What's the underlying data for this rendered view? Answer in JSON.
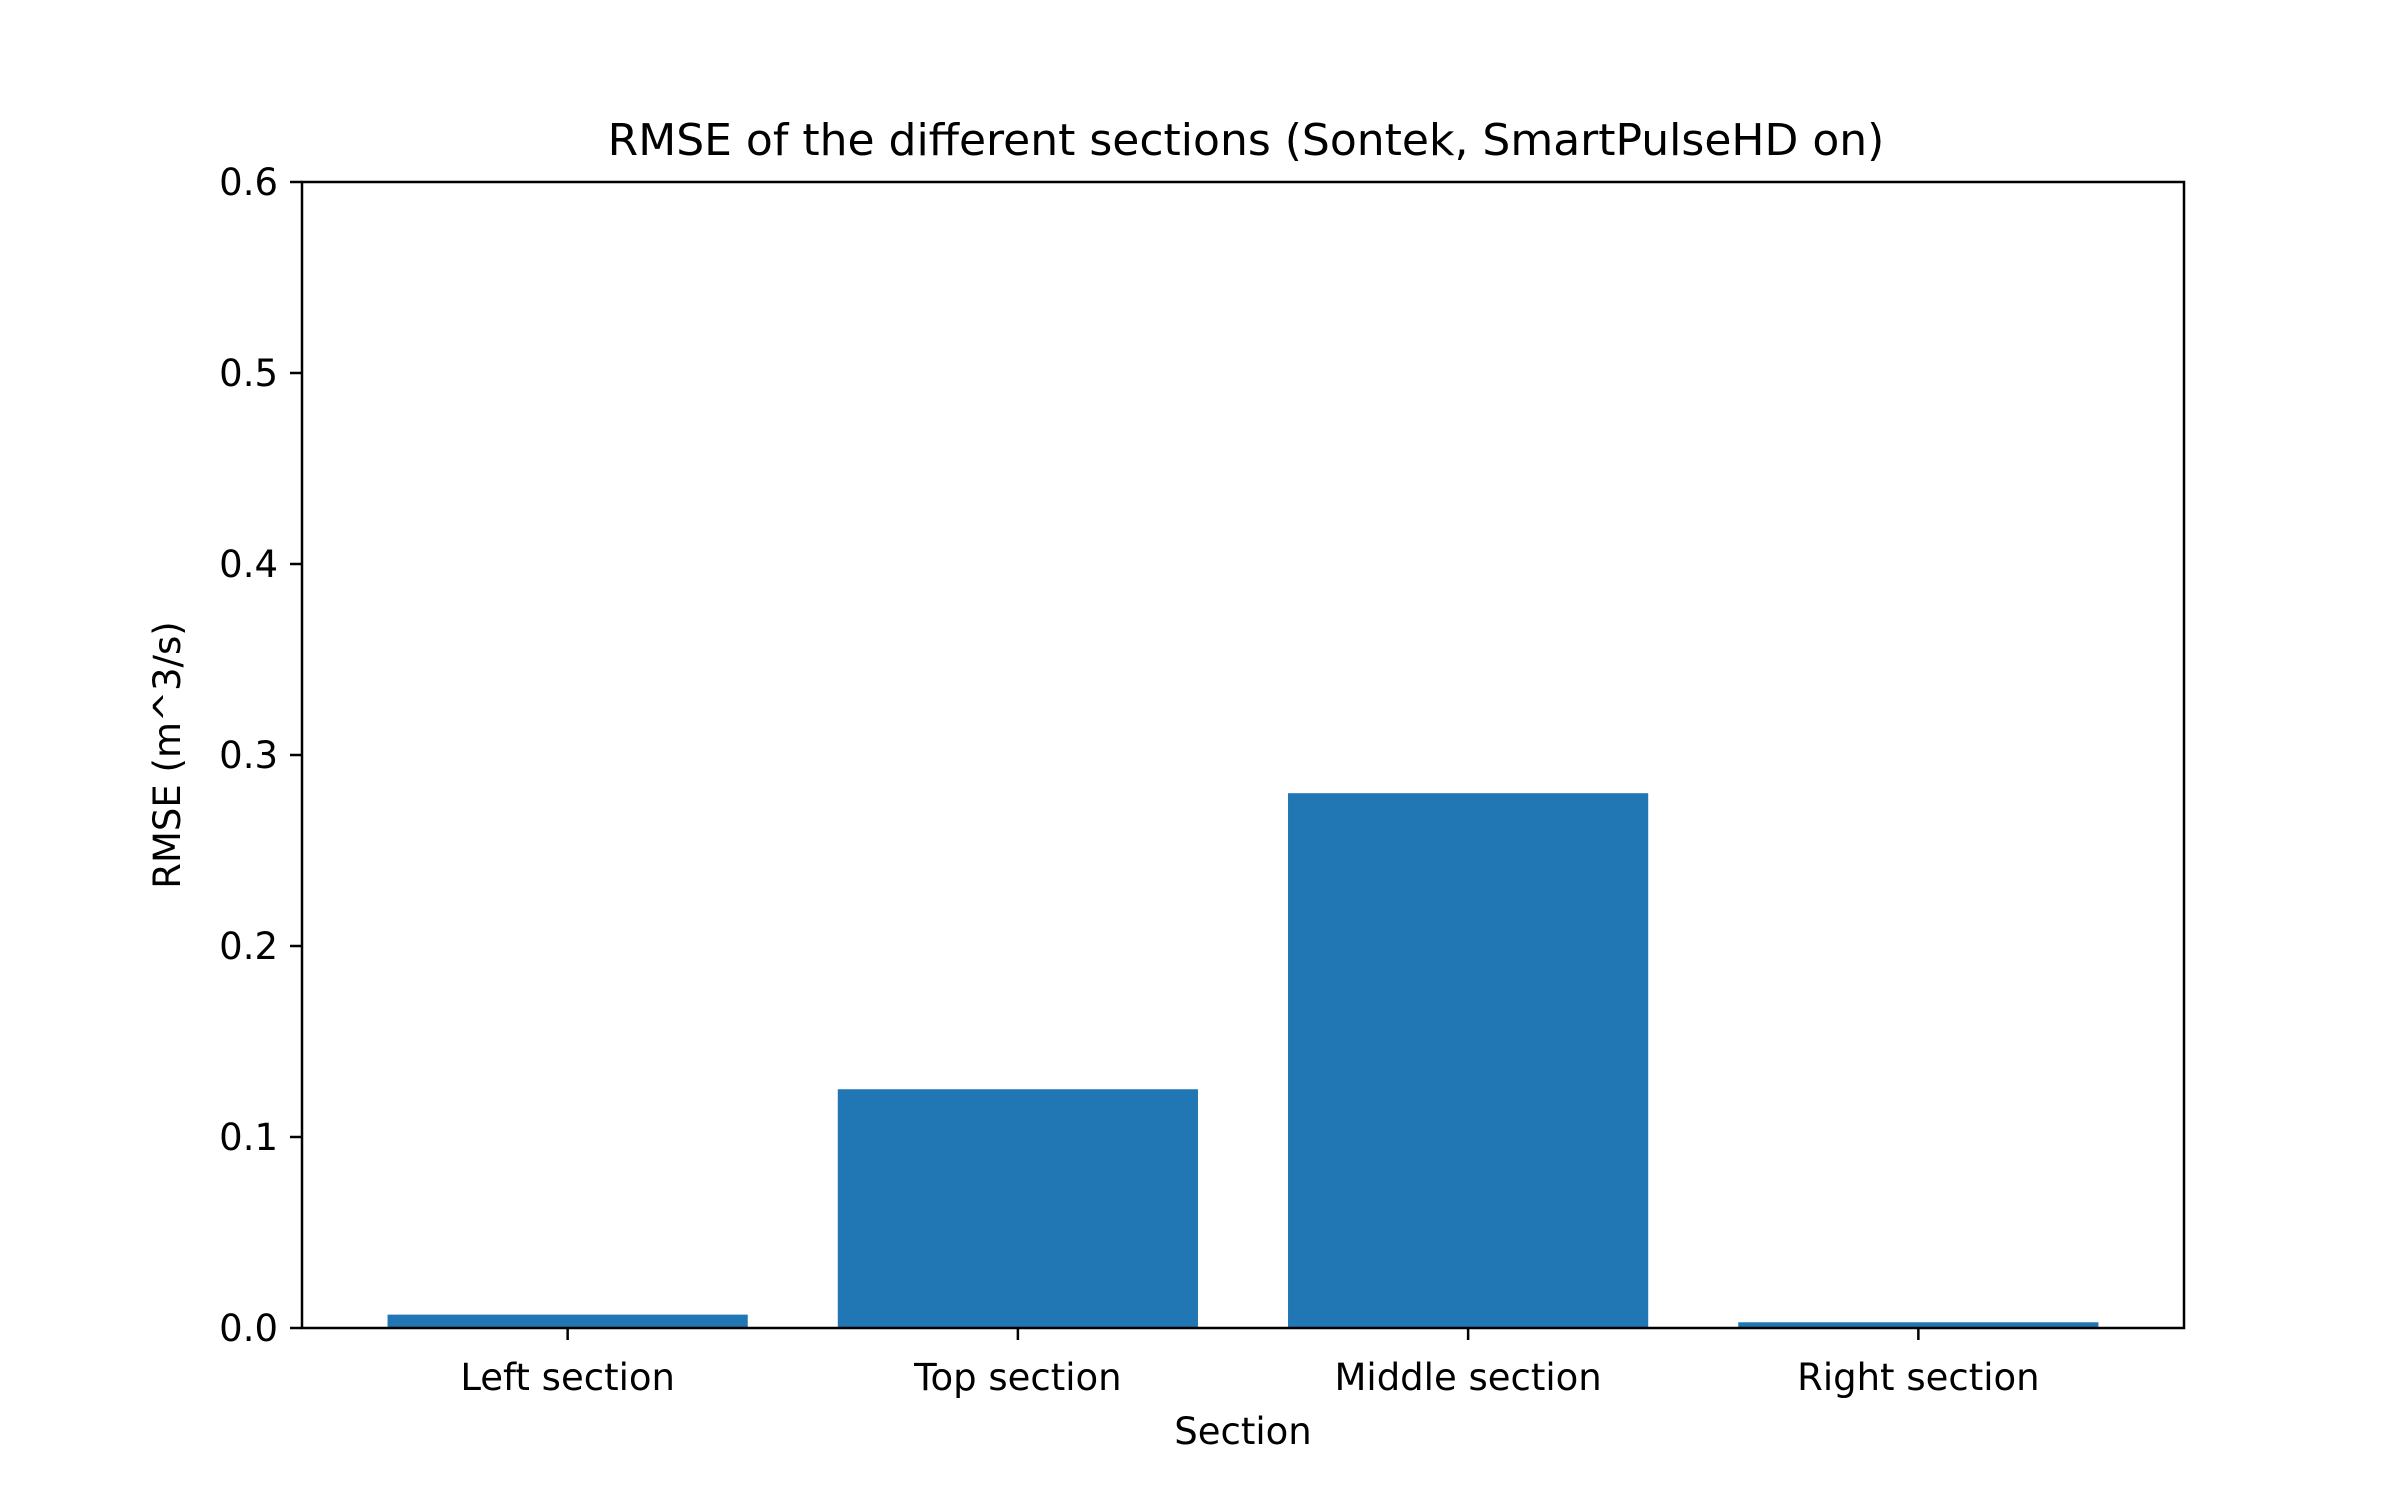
{
  "chart_data": {
    "type": "bar",
    "title": "RMSE of the different sections (Sontek, SmartPulseHD on)",
    "xlabel": "Section",
    "ylabel": "RMSE (m^3/s)",
    "categories": [
      "Left section",
      "Top section",
      "Middle section",
      "Right section"
    ],
    "values": [
      0.007,
      0.125,
      0.28,
      0.003
    ],
    "ylim": [
      0,
      0.6
    ],
    "yticks": [
      "0.0",
      "0.1",
      "0.2",
      "0.3",
      "0.4",
      "0.5",
      "0.6"
    ],
    "grid": false,
    "bar_color": "#2077b4"
  }
}
